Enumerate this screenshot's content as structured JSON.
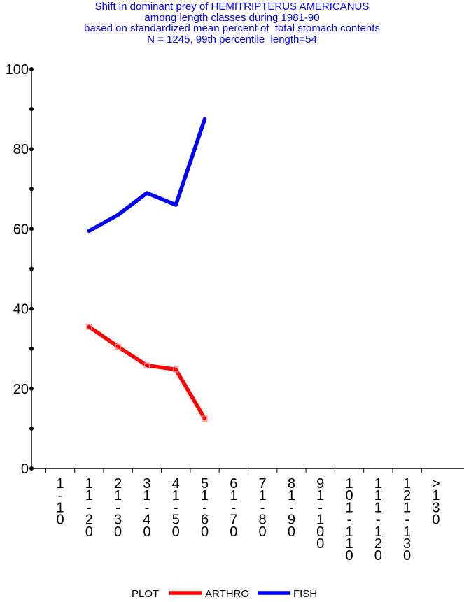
{
  "chart_data": {
    "type": "line",
    "title_lines": [
      "Shift in dominant prey of HEMITRIPTERUS AMERICANUS",
      "among length classes during 1981-90",
      "based on standardized mean percent of  total stomach contents",
      "N = 1245, 99th percentile  length=54"
    ],
    "categories": [
      "1-10",
      "11-20",
      "21-30",
      "31-40",
      "41-50",
      "51-60",
      "61-70",
      "71-80",
      "81-90",
      "91-100",
      "101-110",
      "111-120",
      "121-130",
      ">130"
    ],
    "ylim": [
      0,
      100
    ],
    "yticks": [
      0,
      20,
      40,
      60,
      80,
      100
    ],
    "series": [
      {
        "name": "ARTHRO",
        "color": "#ff0000",
        "markers": true,
        "values": [
          null,
          35.5,
          30.5,
          25.8,
          24.8,
          12.5,
          null,
          null,
          null,
          null,
          null,
          null,
          null,
          null
        ]
      },
      {
        "name": "FISH",
        "color": "#0000ff",
        "markers": false,
        "values": [
          null,
          59.5,
          63.5,
          69.0,
          66.0,
          87.5,
          null,
          null,
          null,
          null,
          null,
          null,
          null,
          null
        ]
      }
    ],
    "legend": {
      "label": "PLOT",
      "position": "bottom"
    },
    "grid": false
  }
}
